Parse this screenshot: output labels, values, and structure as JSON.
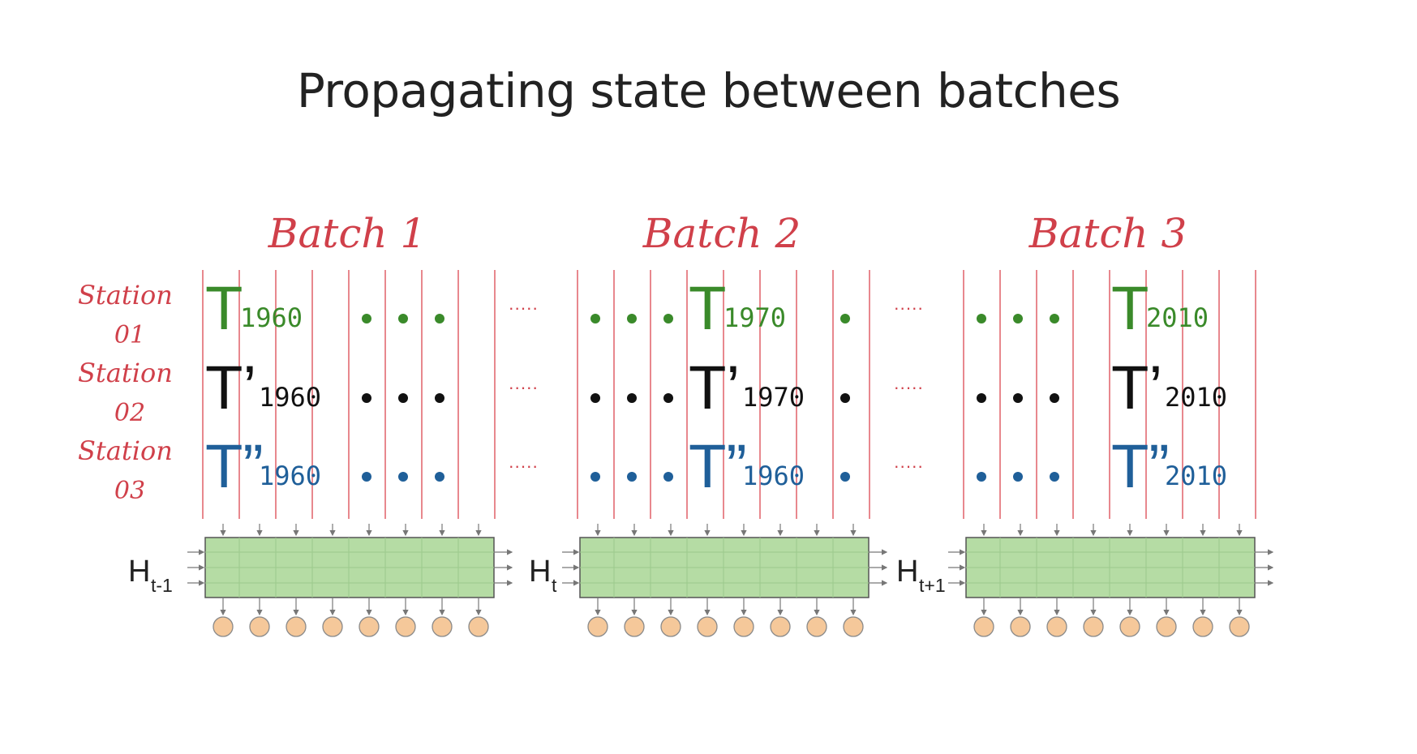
{
  "title": "Propagating state between batches",
  "colors": {
    "handwriting": "#d0404a",
    "station_01": "#3a8a2a",
    "station_02": "#111111",
    "station_03": "#1f5f99",
    "rnn_cell": "#b5dca4",
    "output_node": "#f5c89a"
  },
  "stations": [
    {
      "line1": "Station",
      "line2": "01"
    },
    {
      "line1": "Station",
      "line2": "02"
    },
    {
      "line1": "Station",
      "line2": "03"
    }
  ],
  "ellipsis": "·····",
  "batches": [
    {
      "label": "Batch 1",
      "state_in": {
        "base": "H",
        "sub": "t-1"
      },
      "rows": [
        {
          "symbol": "T",
          "year": "1960"
        },
        {
          "symbol": "T’",
          "year": "1960"
        },
        {
          "symbol": "T”",
          "year": "1960"
        }
      ]
    },
    {
      "label": "Batch 2",
      "state_in": {
        "base": "H",
        "sub": "t"
      },
      "rows": [
        {
          "symbol": "T",
          "year": "1970"
        },
        {
          "symbol": "T’",
          "year": "1970"
        },
        {
          "symbol": "T”",
          "year": "1960"
        }
      ]
    },
    {
      "label": "Batch 3",
      "state_in": {
        "base": "H",
        "sub": "t+1"
      },
      "rows": [
        {
          "symbol": "T",
          "year": "2010"
        },
        {
          "symbol": "T’",
          "year": "2010"
        },
        {
          "symbol": "T”",
          "year": "2010"
        }
      ]
    }
  ]
}
